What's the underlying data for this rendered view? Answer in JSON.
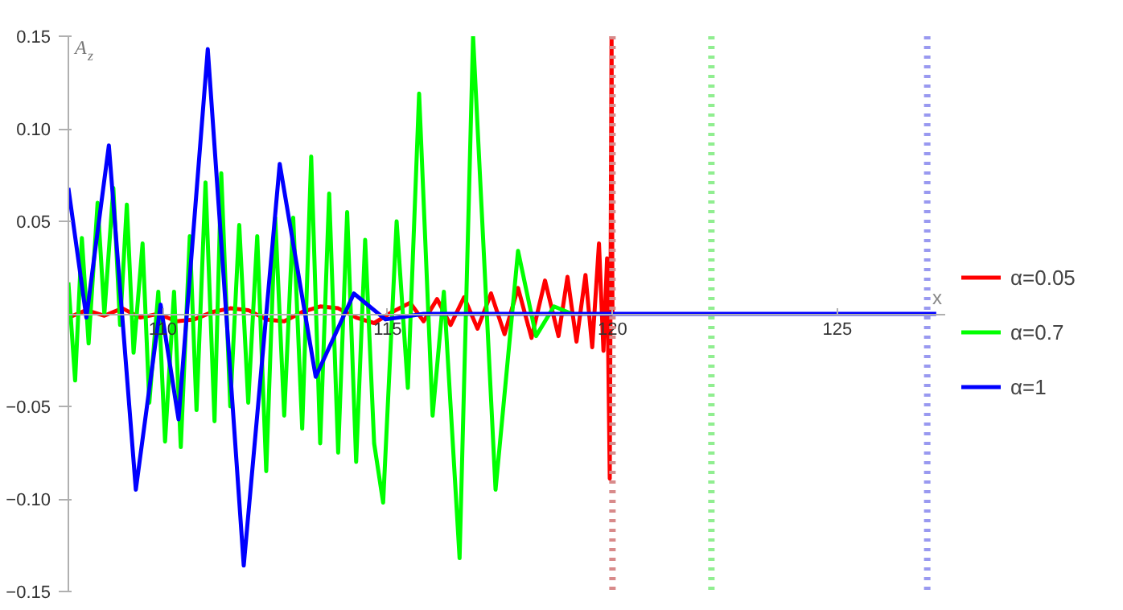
{
  "chart_data": {
    "type": "line",
    "xlabel": "x",
    "ylabel": "A$_{z}$",
    "xlim": [
      107.9,
      127.4
    ],
    "ylim": [
      -0.15,
      0.15
    ],
    "xticks": [
      110,
      115,
      120,
      125
    ],
    "yticks": [
      {
        "value": -0.15,
        "label": "−0.15"
      },
      {
        "value": -0.1,
        "label": "−0.10"
      },
      {
        "value": -0.05,
        "label": "−0.05"
      },
      {
        "value": 0.05,
        "label": "0.05"
      },
      {
        "value": 0.1,
        "label": "0.10"
      },
      {
        "value": 0.15,
        "label": "0.15"
      }
    ],
    "grid": false,
    "legend": "right",
    "marker": "none",
    "line_style": "solid",
    "series": [
      {
        "name": "α=0.05",
        "color": "#ff0000",
        "x": [
          107.9,
          108.3,
          108.7,
          109.1,
          109.5,
          109.9,
          110.3,
          110.7,
          111.1,
          111.5,
          111.9,
          112.3,
          112.7,
          113.1,
          113.5,
          113.9,
          114.3,
          114.7,
          115.1,
          115.5,
          115.8,
          116.1,
          116.4,
          116.7,
          117.0,
          117.3,
          117.6,
          117.9,
          118.2,
          118.5,
          118.8,
          119.0,
          119.2,
          119.4,
          119.55,
          119.7,
          119.8,
          119.88,
          119.94,
          119.98,
          120.0
        ],
        "values": [
          -0.002,
          0.002,
          -0.001,
          0.003,
          -0.002,
          0.0,
          -0.004,
          -0.003,
          0.001,
          0.003,
          0.002,
          -0.003,
          -0.004,
          0.001,
          0.004,
          0.003,
          -0.002,
          -0.005,
          0.001,
          0.006,
          -0.004,
          0.008,
          -0.006,
          0.009,
          -0.008,
          0.011,
          -0.011,
          0.014,
          -0.013,
          0.018,
          -0.012,
          0.02,
          -0.015,
          0.021,
          -0.018,
          0.038,
          -0.02,
          0.03,
          -0.089,
          0.15,
          0.0
        ]
      },
      {
        "name": "α=0.7",
        "color": "#00ff00",
        "x": [
          107.9,
          108.05,
          108.2,
          108.35,
          108.55,
          108.7,
          108.9,
          109.05,
          109.2,
          109.35,
          109.55,
          109.7,
          109.9,
          110.05,
          110.25,
          110.4,
          110.6,
          110.75,
          110.95,
          111.15,
          111.3,
          111.5,
          111.7,
          111.9,
          112.1,
          112.3,
          112.5,
          112.7,
          112.9,
          113.1,
          113.3,
          113.5,
          113.7,
          113.9,
          114.1,
          114.3,
          114.5,
          114.7,
          114.9,
          115.2,
          115.45,
          115.7,
          116.0,
          116.25,
          116.6,
          116.9,
          117.4,
          117.9,
          118.3,
          118.7,
          119.1
        ],
        "values": [
          0.017,
          -0.036,
          0.041,
          -0.016,
          0.06,
          0.0,
          0.068,
          -0.006,
          0.059,
          -0.021,
          0.038,
          -0.048,
          0.012,
          -0.069,
          0.012,
          -0.072,
          0.042,
          -0.052,
          0.071,
          -0.058,
          0.076,
          -0.05,
          0.048,
          -0.048,
          0.042,
          -0.085,
          0.052,
          -0.055,
          0.052,
          -0.062,
          0.085,
          -0.07,
          0.065,
          -0.075,
          0.055,
          -0.08,
          0.04,
          -0.07,
          -0.102,
          0.05,
          -0.04,
          0.119,
          -0.055,
          0.012,
          -0.132,
          0.15,
          -0.095,
          0.034,
          -0.012,
          0.004,
          0.0
        ]
      },
      {
        "name": "α=1",
        "color": "#0000ff",
        "x": [
          107.9,
          108.3,
          108.8,
          109.4,
          109.95,
          110.35,
          111.0,
          111.8,
          112.6,
          113.4,
          114.25,
          114.95,
          115.8,
          127.2
        ],
        "values": [
          0.068,
          -0.002,
          0.091,
          -0.095,
          0.005,
          -0.057,
          0.143,
          -0.136,
          0.081,
          -0.034,
          0.011,
          -0.003,
          0.0,
          0.0
        ]
      }
    ],
    "ref_lines": [
      {
        "axis": "x",
        "value": 120,
        "label": null,
        "color": "#d88a8a",
        "line_style": "dotted"
      },
      {
        "axis": "x",
        "value": 122.2,
        "label": null,
        "color": "#90ee90",
        "line_style": "dotted"
      },
      {
        "axis": "x",
        "value": 127,
        "label": null,
        "color": "#9999f0",
        "line_style": "dotted"
      }
    ]
  }
}
